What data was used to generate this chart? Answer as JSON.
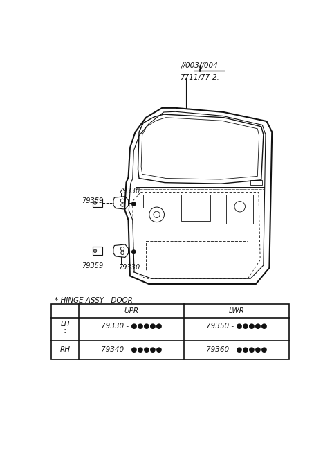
{
  "bg_color": "#ffffff",
  "label_top1": "//003//004",
  "label_top2": "7711/77-2.",
  "label_upper_79330": "79330",
  "label_upper_79359": "79359",
  "label_lower_79330": "79330",
  "label_lower_79359": "79359",
  "hinge_label": "* HINGE ASSY - DOOR",
  "table_col_headers": [
    "UPR",
    "LWR"
  ],
  "table_row1_label": "LH",
  "table_row1_upr": "79330 - ●●●●●",
  "table_row1_lwr": "79350 - ●●●●●",
  "table_row2_label": "RH",
  "table_row2_upr": "79340 - ●●●●●",
  "table_row2_lwr": "79360 - ●●●●●",
  "font_color": "#111111",
  "line_color": "#111111"
}
